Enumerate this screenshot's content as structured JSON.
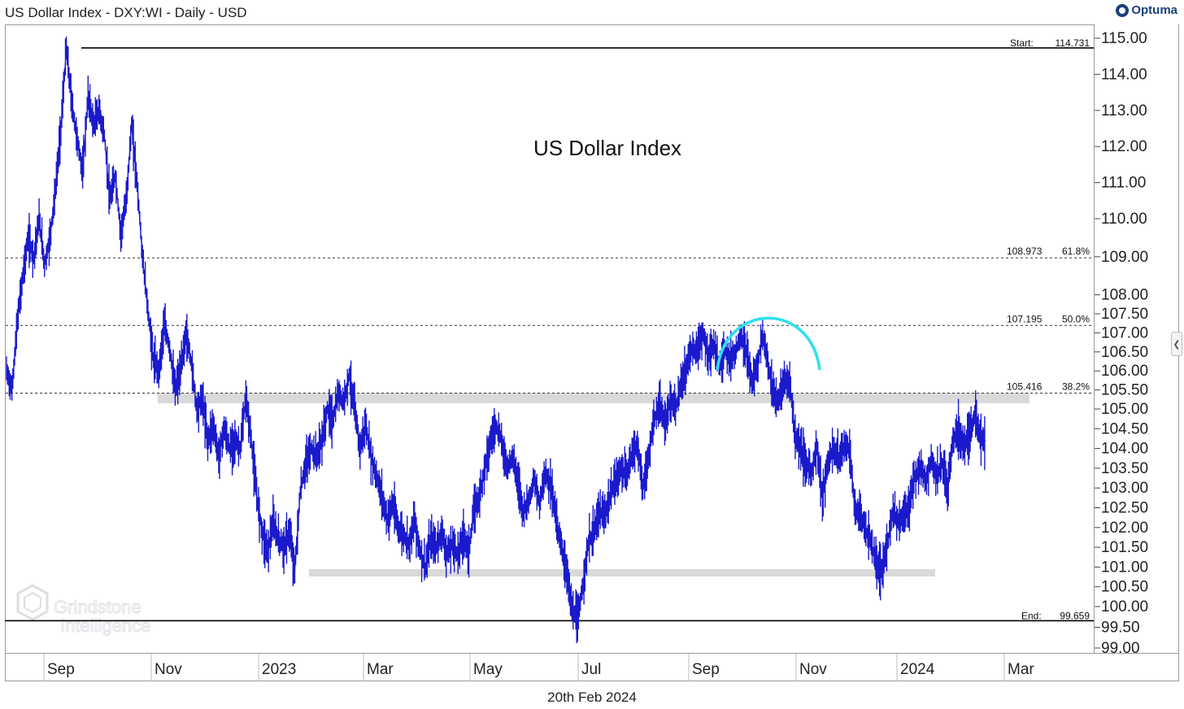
{
  "header": {
    "title": "US Dollar Index - DXY:WI - Daily - USD",
    "logo_text": "Optuma"
  },
  "footer": {
    "date": "20th Feb 2024"
  },
  "watermark": {
    "line1": "Grindstone",
    "line2": "Intelligence"
  },
  "colors": {
    "price": "#1a1acc",
    "arc": "#2ee0ee",
    "zone": "#d9d9d9",
    "accent": "#1a3f7a"
  },
  "chart_data": {
    "type": "line",
    "title": "US Dollar Index",
    "ylim": [
      98.85,
      115.3
    ],
    "y_ticks": [
      "115.00",
      "114.00",
      "113.00",
      "112.00",
      "111.00",
      "110.00",
      "109.00",
      "108.00",
      "107.50",
      "107.00",
      "106.50",
      "106.00",
      "105.50",
      "105.00",
      "104.50",
      "104.00",
      "103.50",
      "103.00",
      "102.50",
      "102.00",
      "101.50",
      "101.00",
      "100.50",
      "100.00",
      "99.50",
      "99.00"
    ],
    "x_ticks": [
      "Sep",
      "Nov",
      "2023",
      "Mar",
      "May",
      "Jul",
      "Sep",
      "Nov",
      "2024",
      "Mar"
    ],
    "series": [
      {
        "values": [
          [
            0,
            106.0
          ],
          [
            0.5,
            105.5
          ],
          [
            1,
            107.3
          ],
          [
            1.5,
            108.5
          ],
          [
            2,
            109.5
          ],
          [
            2.5,
            109.0
          ],
          [
            3,
            110.0
          ],
          [
            3.5,
            108.8
          ],
          [
            4,
            109.5
          ],
          [
            4.5,
            110.8
          ],
          [
            5,
            112.5
          ],
          [
            5.5,
            114.73
          ],
          [
            6,
            113.2
          ],
          [
            6.5,
            112.2
          ],
          [
            7,
            111.3
          ],
          [
            7.5,
            113.4
          ],
          [
            8,
            112.6
          ],
          [
            8.5,
            113.0
          ],
          [
            9,
            112.3
          ],
          [
            9.5,
            110.5
          ],
          [
            10,
            111.2
          ],
          [
            10.5,
            109.6
          ],
          [
            11,
            110.5
          ],
          [
            11.5,
            112.6
          ],
          [
            12,
            111.0
          ],
          [
            12.5,
            109.0
          ],
          [
            13,
            107.6
          ],
          [
            13.5,
            106.3
          ],
          [
            14,
            106.0
          ],
          [
            14.5,
            107.2
          ],
          [
            15,
            106.6
          ],
          [
            15.5,
            105.5
          ],
          [
            16,
            106.0
          ],
          [
            16.5,
            107.0
          ],
          [
            17,
            106.2
          ],
          [
            17.5,
            105.0
          ],
          [
            18,
            105.3
          ],
          [
            18.5,
            104.2
          ],
          [
            19,
            104.6
          ],
          [
            19.5,
            103.8
          ],
          [
            20,
            104.5
          ],
          [
            20.5,
            104.0
          ],
          [
            21,
            104.2
          ],
          [
            21.5,
            104.0
          ],
          [
            22,
            105.3
          ],
          [
            22.5,
            104.2
          ],
          [
            23,
            102.8
          ],
          [
            23.5,
            101.9
          ],
          [
            24,
            101.4
          ],
          [
            24.5,
            102.1
          ],
          [
            25,
            101.7
          ],
          [
            25.5,
            101.5
          ],
          [
            26,
            101.9
          ],
          [
            26.5,
            100.9
          ],
          [
            27,
            102.9
          ],
          [
            27.5,
            103.6
          ],
          [
            28,
            104.0
          ],
          [
            28.5,
            103.8
          ],
          [
            29,
            104.2
          ],
          [
            29.5,
            105.0
          ],
          [
            30,
            104.7
          ],
          [
            30.5,
            105.4
          ],
          [
            31,
            105.2
          ],
          [
            31.5,
            105.9
          ],
          [
            32,
            105.0
          ],
          [
            32.5,
            104.0
          ],
          [
            33,
            104.6
          ],
          [
            33.5,
            103.8
          ],
          [
            34,
            103.3
          ],
          [
            34.5,
            102.8
          ],
          [
            35,
            102.2
          ],
          [
            35.5,
            102.6
          ],
          [
            36,
            102.0
          ],
          [
            36.5,
            101.8
          ],
          [
            37,
            101.6
          ],
          [
            37.5,
            102.2
          ],
          [
            38,
            101.4
          ],
          [
            38.5,
            101.0
          ],
          [
            39,
            101.7
          ],
          [
            39.5,
            101.5
          ],
          [
            40,
            101.9
          ],
          [
            40.5,
            101.3
          ],
          [
            41,
            101.6
          ],
          [
            41.5,
            101.3
          ],
          [
            42,
            101.8
          ],
          [
            42.5,
            101.4
          ],
          [
            43,
            102.5
          ],
          [
            43.5,
            102.8
          ],
          [
            44,
            103.6
          ],
          [
            44.5,
            104.2
          ],
          [
            45,
            104.6
          ],
          [
            45.5,
            104.2
          ],
          [
            46,
            103.5
          ],
          [
            46.5,
            103.8
          ],
          [
            47,
            103.2
          ],
          [
            47.5,
            102.4
          ],
          [
            48,
            102.7
          ],
          [
            48.5,
            103.2
          ],
          [
            49,
            102.6
          ],
          [
            49.5,
            103.4
          ],
          [
            50,
            103.1
          ],
          [
            50.5,
            102.3
          ],
          [
            51,
            101.5
          ],
          [
            51.5,
            100.9
          ],
          [
            52,
            99.9
          ],
          [
            52.5,
            99.66
          ],
          [
            53,
            100.6
          ],
          [
            53.5,
            101.6
          ],
          [
            54,
            101.9
          ],
          [
            54.5,
            102.4
          ],
          [
            55,
            102.3
          ],
          [
            55.5,
            102.8
          ],
          [
            56,
            103.2
          ],
          [
            56.5,
            103.5
          ],
          [
            57,
            103.3
          ],
          [
            57.5,
            103.9
          ],
          [
            58,
            104.1
          ],
          [
            58.5,
            103.0
          ],
          [
            59,
            103.7
          ],
          [
            59.5,
            104.7
          ],
          [
            60,
            105.1
          ],
          [
            60.5,
            104.6
          ],
          [
            61,
            105.2
          ],
          [
            61.5,
            105.0
          ],
          [
            62,
            105.6
          ],
          [
            62.5,
            106.1
          ],
          [
            63,
            106.6
          ],
          [
            63.5,
            106.5
          ],
          [
            64,
            107.0
          ],
          [
            64.5,
            106.4
          ],
          [
            65,
            106.7
          ],
          [
            65.5,
            106.1
          ],
          [
            66,
            106.6
          ],
          [
            66.5,
            106.3
          ],
          [
            67,
            106.5
          ],
          [
            67.5,
            106.9
          ],
          [
            68,
            106.5
          ],
          [
            68.5,
            105.7
          ],
          [
            69,
            106.1
          ],
          [
            69.5,
            107.0
          ],
          [
            70,
            106.2
          ],
          [
            70.5,
            105.4
          ],
          [
            71,
            105.2
          ],
          [
            71.5,
            105.8
          ],
          [
            72,
            105.7
          ],
          [
            72.5,
            104.3
          ],
          [
            73,
            104.0
          ],
          [
            73.5,
            103.6
          ],
          [
            74,
            103.4
          ],
          [
            74.5,
            104.0
          ],
          [
            75,
            102.8
          ],
          [
            75.5,
            103.6
          ],
          [
            76,
            104.0
          ],
          [
            76.5,
            103.7
          ],
          [
            77,
            104.1
          ],
          [
            77.5,
            104.0
          ],
          [
            78,
            102.4
          ],
          [
            78.5,
            102.3
          ],
          [
            79,
            101.9
          ],
          [
            79.5,
            101.6
          ],
          [
            80,
            101.0
          ],
          [
            80.5,
            100.9
          ],
          [
            81,
            101.6
          ],
          [
            81.5,
            102.5
          ],
          [
            82,
            102.1
          ],
          [
            82.5,
            102.3
          ],
          [
            83,
            102.6
          ],
          [
            83.5,
            103.3
          ],
          [
            84,
            103.5
          ],
          [
            84.5,
            103.2
          ],
          [
            85,
            103.7
          ],
          [
            85.5,
            103.3
          ],
          [
            86,
            103.6
          ],
          [
            86.5,
            103.0
          ],
          [
            87,
            104.2
          ],
          [
            87.5,
            104.5
          ],
          [
            88,
            104.1
          ],
          [
            88.5,
            104.4
          ],
          [
            89,
            104.8
          ],
          [
            89.5,
            104.3
          ],
          [
            90,
            104.2
          ]
        ]
      }
    ],
    "annotations": {
      "start": {
        "label": "Start:",
        "value": "114.731",
        "y": 114.731
      },
      "end": {
        "label": "End:",
        "value": "99.659",
        "y": 99.659
      },
      "fib_levels": [
        {
          "value": "108.973",
          "pct": "61.8%",
          "y": 108.973
        },
        {
          "value": "107.195",
          "pct": "50.0%",
          "y": 107.195
        },
        {
          "value": "105.416",
          "pct": "38.2%",
          "y": 105.416
        }
      ],
      "zones": [
        {
          "y": 105.25,
          "start": "Nov",
          "end": "Mar (next year)"
        },
        {
          "y": 100.85,
          "start": "2023 (Jan)",
          "end": "Dec"
        }
      ]
    },
    "grid": false
  }
}
